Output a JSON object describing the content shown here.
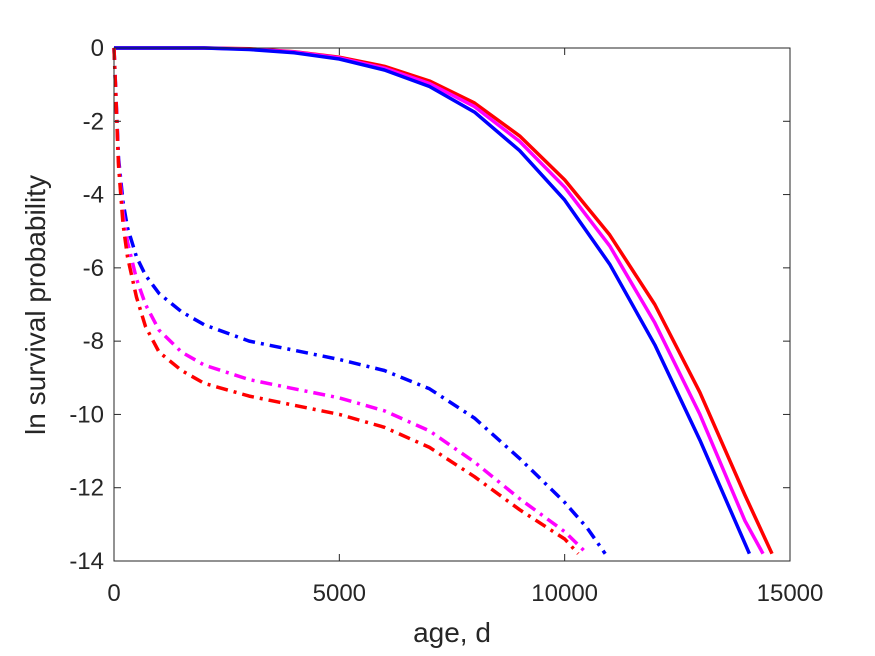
{
  "chart_data": {
    "type": "line",
    "xlabel": "age, d",
    "ylabel": "ln survival probability",
    "xlim": [
      0,
      15000
    ],
    "ylim": [
      -14,
      0
    ],
    "xticks": [
      0,
      5000,
      10000,
      15000
    ],
    "yticks": [
      0,
      -2,
      -4,
      -6,
      -8,
      -10,
      -12,
      -14
    ],
    "xtick_labels": [
      "0",
      "5000",
      "10000",
      "15000"
    ],
    "ytick_labels": [
      "0",
      "-2",
      "-4",
      "-6",
      "-8",
      "-10",
      "-12",
      "-14"
    ],
    "grid": false,
    "box": true,
    "series": [
      {
        "color": "#ff0000",
        "style": "solid",
        "x": [
          0,
          1000,
          2000,
          3000,
          4000,
          5000,
          6000,
          7000,
          8000,
          9000,
          10000,
          11000,
          12000,
          13000,
          14000,
          14600
        ],
        "y": [
          0,
          0,
          0,
          -0.02,
          -0.1,
          -0.25,
          -0.5,
          -0.9,
          -1.5,
          -2.4,
          -3.6,
          -5.1,
          -7.0,
          -9.4,
          -12.2,
          -13.8
        ]
      },
      {
        "color": "#ff00ff",
        "style": "solid",
        "x": [
          0,
          1000,
          2000,
          3000,
          4000,
          5000,
          6000,
          7000,
          8000,
          9000,
          10000,
          11000,
          12000,
          13000,
          14000,
          14400
        ],
        "y": [
          0,
          0,
          0,
          -0.03,
          -0.11,
          -0.27,
          -0.55,
          -0.97,
          -1.6,
          -2.55,
          -3.8,
          -5.4,
          -7.5,
          -10.0,
          -12.9,
          -13.8
        ]
      },
      {
        "color": "#0000ff",
        "style": "solid",
        "x": [
          0,
          1000,
          2000,
          3000,
          4000,
          5000,
          6000,
          7000,
          8000,
          9000,
          10000,
          11000,
          12000,
          13000,
          14100
        ],
        "y": [
          0,
          0,
          0,
          -0.04,
          -0.13,
          -0.3,
          -0.6,
          -1.05,
          -1.75,
          -2.8,
          -4.15,
          -5.9,
          -8.1,
          -10.7,
          -13.8
        ]
      },
      {
        "color": "#0000ff",
        "style": "dashdot",
        "x": [
          0,
          100,
          200,
          300,
          500,
          700,
          1000,
          1500,
          2000,
          3000,
          4000,
          5000,
          6000,
          7000,
          8000,
          9000,
          10000,
          10500,
          10900
        ],
        "y": [
          0,
          -3.0,
          -4.2,
          -4.9,
          -5.7,
          -6.2,
          -6.7,
          -7.2,
          -7.55,
          -8.0,
          -8.25,
          -8.5,
          -8.8,
          -9.3,
          -10.1,
          -11.2,
          -12.4,
          -13.1,
          -13.8
        ]
      },
      {
        "color": "#ff00ff",
        "style": "dashdot",
        "x": [
          0,
          100,
          200,
          300,
          500,
          700,
          1000,
          1500,
          2000,
          3000,
          4000,
          5000,
          6000,
          7000,
          8000,
          9000,
          10000,
          10500
        ],
        "y": [
          0,
          -3.1,
          -4.5,
          -5.3,
          -6.3,
          -7.0,
          -7.7,
          -8.3,
          -8.65,
          -9.05,
          -9.3,
          -9.55,
          -9.9,
          -10.45,
          -11.3,
          -12.3,
          -13.2,
          -13.8
        ]
      },
      {
        "color": "#ff0000",
        "style": "dashdot",
        "x": [
          0,
          100,
          200,
          300,
          500,
          700,
          1000,
          1500,
          2000,
          3000,
          4000,
          5000,
          6000,
          7000,
          8000,
          9000,
          10000,
          10300
        ],
        "y": [
          0,
          -3.2,
          -4.8,
          -5.7,
          -6.8,
          -7.6,
          -8.3,
          -8.8,
          -9.15,
          -9.5,
          -9.75,
          -10.0,
          -10.35,
          -10.9,
          -11.7,
          -12.6,
          -13.4,
          -13.8
        ]
      }
    ]
  }
}
